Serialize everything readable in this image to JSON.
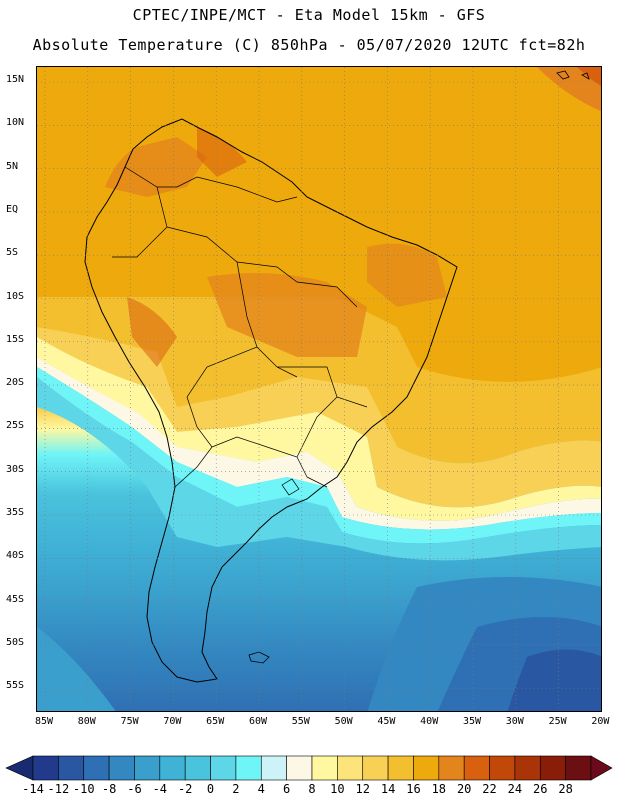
{
  "header": {
    "line1": "CPTEC/INPE/MCT -  Eta Model 15km - GFS",
    "line2": "Absolute Temperature (C) 850hPa - 05/07/2020 12UTC fct=82h"
  },
  "map": {
    "lat_labels": [
      "15N",
      "10N",
      "5N",
      "EQ",
      "5S",
      "10S",
      "15S",
      "20S",
      "25S",
      "30S",
      "35S",
      "40S",
      "45S",
      "50S",
      "55S"
    ],
    "lon_labels": [
      "85W",
      "80W",
      "75W",
      "70W",
      "65W",
      "60W",
      "55W",
      "50W",
      "45W",
      "40W",
      "35W",
      "30W",
      "25W",
      "20W"
    ],
    "lat_range": [
      15,
      -55
    ],
    "lon_range": [
      -85,
      -20
    ]
  },
  "colorbar": {
    "labels": [
      "-14",
      "-12",
      "-10",
      "-8",
      "-6",
      "-4",
      "-2",
      "0",
      "2",
      "4",
      "6",
      "8",
      "10",
      "12",
      "14",
      "16",
      "18",
      "20",
      "22",
      "24",
      "26",
      "28"
    ],
    "colors": [
      "#223a8c",
      "#2a57a2",
      "#2f6fb3",
      "#3388c1",
      "#3a9fcc",
      "#40b2d6",
      "#4ac3dd",
      "#5dd6e8",
      "#6ff4f7",
      "#cdf2f7",
      "#fdf8e6",
      "#fff8a0",
      "#fde47a",
      "#f8d055",
      "#f3bf2e",
      "#eeaa0c",
      "#e4841c",
      "#d8600f",
      "#c24809",
      "#a83408",
      "#8a1d07",
      "#6b0f12"
    ],
    "min_color": "#1a2a70",
    "max_color": "#6b0a1a"
  }
}
